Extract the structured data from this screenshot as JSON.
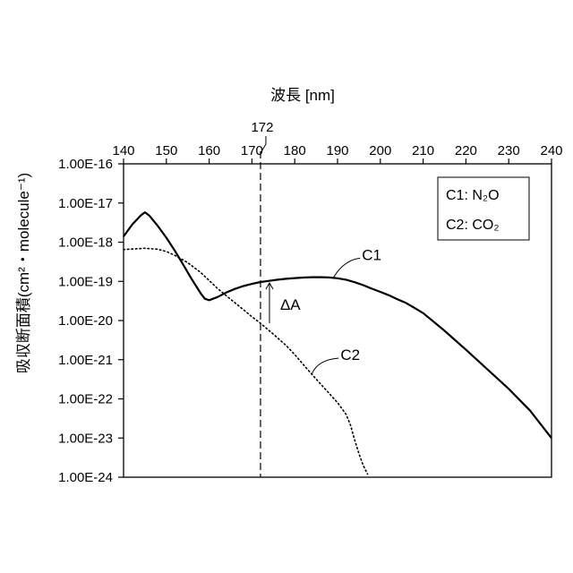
{
  "chart_data": {
    "type": "line",
    "title": "",
    "xlabel": "波長 [nm]",
    "ylabel": "吸収断面積(cm²・molecule⁻¹)",
    "x_axis_position": "top",
    "xlim": [
      140,
      240
    ],
    "x_ticks": [
      140,
      150,
      160,
      170,
      180,
      190,
      200,
      210,
      220,
      230,
      240
    ],
    "x_tick_labels": [
      "140",
      "150",
      "160",
      "170",
      "180",
      "190",
      "200",
      "210",
      "220",
      "230",
      "240"
    ],
    "y_scale": "log",
    "ylim": [
      1e-24,
      1e-16
    ],
    "y_ticks": [
      1e-16,
      1e-17,
      1e-18,
      1e-19,
      1e-20,
      1e-21,
      1e-22,
      1e-23,
      1e-24
    ],
    "y_tick_labels": [
      "1.00E-16",
      "1.00E-17",
      "1.00E-18",
      "1.00E-19",
      "1.00E-20",
      "1.00E-21",
      "1.00E-22",
      "1.00E-23",
      "1.00E-24"
    ],
    "grid": false,
    "legend": {
      "placement": "top-right",
      "entries": [
        "C1: N₂O",
        "C2: CO₂"
      ]
    },
    "series": [
      {
        "name": "C1",
        "style": "solid",
        "x": [
          140,
          142,
          144,
          145,
          146,
          148,
          150,
          152,
          154,
          156,
          158,
          159,
          160,
          162,
          164,
          166,
          168,
          170,
          172,
          174,
          176,
          178,
          180,
          182,
          184,
          186,
          188,
          190,
          192,
          194,
          196,
          198,
          200,
          202,
          204,
          206,
          208,
          210,
          215,
          220,
          225,
          230,
          235,
          240
        ],
        "y": [
          1.4e-18,
          2.8e-18,
          4.8e-18,
          5.8e-18,
          4.8e-18,
          2.6e-18,
          1.3e-18,
          6e-19,
          2.6e-19,
          1.1e-19,
          5e-20,
          3.6e-20,
          3.3e-20,
          4e-20,
          5.2e-20,
          6.4e-20,
          7.6e-20,
          8.6e-20,
          9.6e-20,
          1.03e-19,
          1.1e-19,
          1.16e-19,
          1.21e-19,
          1.25e-19,
          1.28e-19,
          1.28e-19,
          1.26e-19,
          1.2e-19,
          1.1e-19,
          9.5e-20,
          8e-20,
          6.5e-20,
          5.4e-20,
          4.4e-20,
          3.5e-20,
          2.8e-20,
          2.1e-20,
          1.55e-20,
          5.5e-21,
          1.8e-21,
          5.7e-22,
          1.8e-22,
          5e-23,
          1e-23
        ]
      },
      {
        "name": "C2",
        "style": "dotted",
        "x": [
          140,
          145,
          148,
          150,
          152,
          155,
          158,
          160,
          162,
          165,
          168,
          170,
          172,
          175,
          178,
          180,
          182,
          185,
          188,
          190,
          192,
          193,
          194,
          195,
          196,
          197
        ],
        "y": [
          6.5e-19,
          7e-19,
          6.6e-19,
          5.8e-19,
          4.6e-19,
          3e-19,
          1.7e-19,
          1.05e-19,
          6.5e-20,
          3.5e-20,
          1.9e-20,
          1.25e-20,
          8.5e-21,
          4.5e-21,
          2.3e-21,
          1.35e-21,
          7.5e-22,
          3.2e-22,
          1.4e-22,
          8e-23,
          4e-23,
          2.2e-23,
          9e-24,
          4e-24,
          2e-24,
          1.2e-24
        ]
      }
    ],
    "annotations": {
      "marker_wavelength": 172,
      "marker_label": "172",
      "delta_label": "ΔA",
      "c1_label": "C1",
      "c2_label": "C2"
    }
  }
}
